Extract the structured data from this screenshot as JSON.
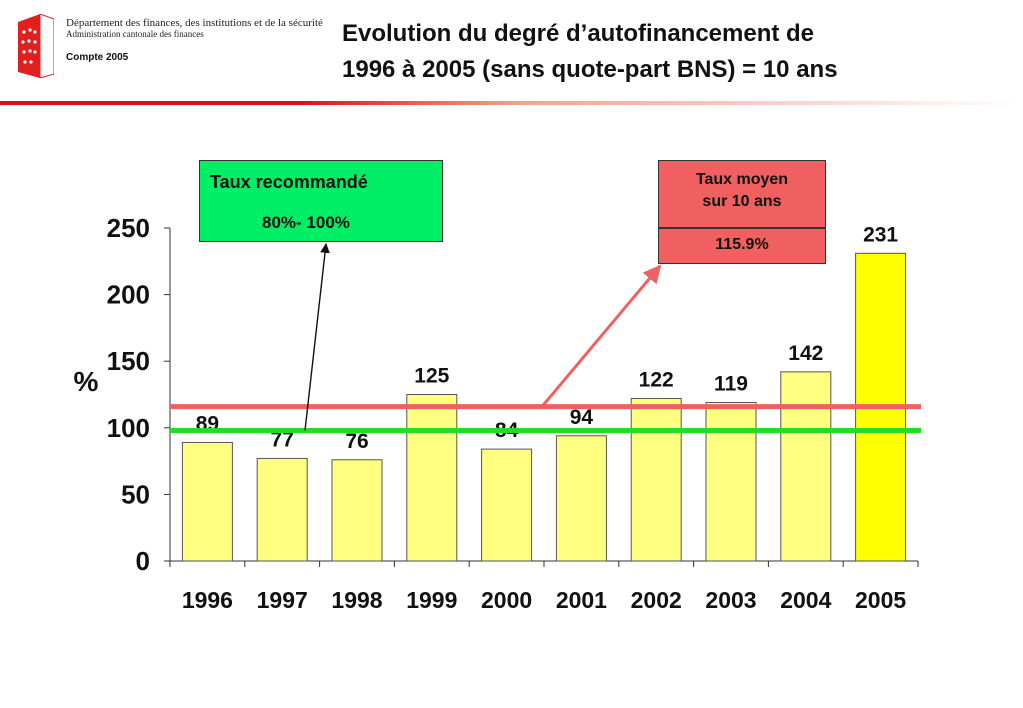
{
  "header": {
    "org_line1": "Département des finances, des institutions et de la sécurité",
    "org_line2": "Administration cantonale des finances",
    "compte": "Compte 2005"
  },
  "title": {
    "line1": "Evolution du degré d’autofinancement de",
    "line2": "1996 à 2005 (sans quote-part BNS) = 10 ans"
  },
  "callouts": {
    "recommended_label": "Taux recommandé",
    "recommended_range": "80%- 100%",
    "average_label_line1": "Taux moyen",
    "average_label_line2": "sur 10 ans",
    "average_value": "115.9%"
  },
  "colors": {
    "bar": "#ffff80",
    "bar_highlight": "#ffff00",
    "average_line": "#f06060",
    "recommended_line": "#22dd22",
    "green_box": "#00ee66",
    "red_box": "#f06060",
    "header_bar": "#e01010"
  },
  "chart_data": {
    "type": "bar",
    "categories": [
      "1996",
      "1997",
      "1998",
      "1999",
      "2000",
      "2001",
      "2002",
      "2003",
      "2004",
      "2005"
    ],
    "values": [
      89,
      77,
      76,
      125,
      84,
      94,
      122,
      119,
      142,
      231
    ],
    "data_labels": [
      "89",
      "77",
      "76",
      "125",
      "84",
      "94",
      "122",
      "119",
      "142",
      "231"
    ],
    "highlight_index": 9,
    "ylabel": "%",
    "ylim": [
      0,
      250
    ],
    "yticks": [
      0,
      50,
      100,
      150,
      200,
      250
    ],
    "reference_lines": [
      {
        "value": 115.9
      },
      {
        "value": 98
      }
    ],
    "grid": false,
    "legend": "none"
  }
}
